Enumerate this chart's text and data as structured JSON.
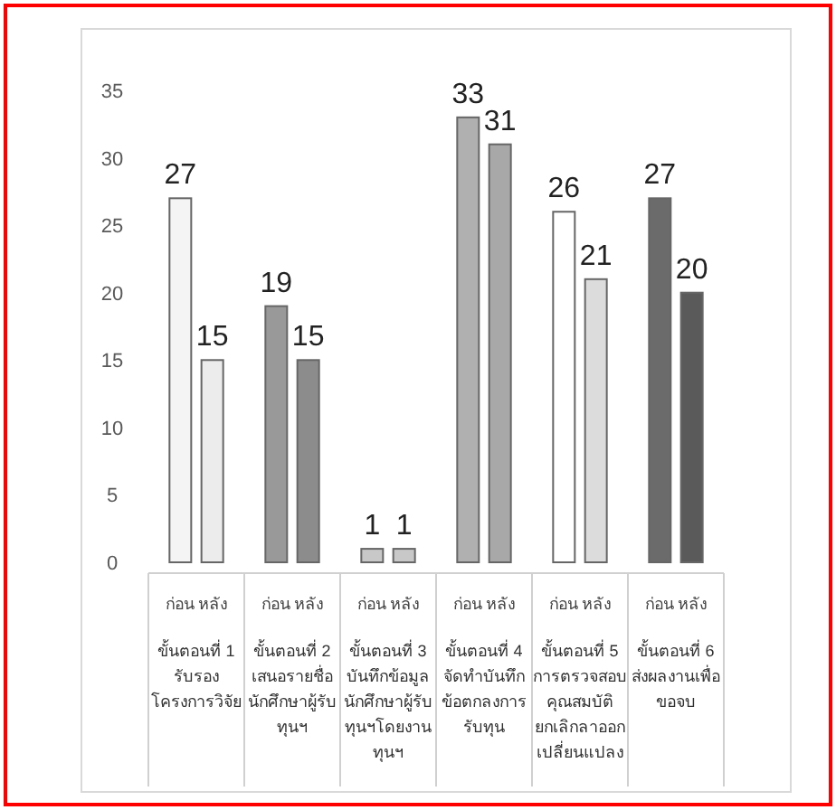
{
  "chart_data": {
    "type": "bar",
    "categories": [
      "ขั้นตอนที่ 1\nรับรอง\nโครงการวิจัย",
      "ขั้นตอนที่ 2\nเสนอรายชื่อ\nนักศึกษาผู้รับ\nทุนฯ",
      "ขั้นตอนที่ 3\nบันทึกข้อมูล\nนักศึกษาผู้รับ\nทุนฯโดยงาน\nทุนฯ",
      "ขั้นตอนที่ 4\nจัดทำบันทึก\nข้อตกลงการ\nรับทุน",
      "ขั้นตอนที่ 5\nการตรวจสอบ\nคุณสมบัติ\nยกเลิกลาออก\nเปลี่ยนแปลง",
      "ขั้นตอนที่ 6\nส่งผลงานเพื่อ\nขอจบ"
    ],
    "series": [
      {
        "name": "ก่อน",
        "colors": [
          "#f4f4f4",
          "#999999",
          "#c8c8c8",
          "#b0b0b0",
          "#ffffff",
          "#6b6b6b"
        ],
        "values": [
          27,
          19,
          1,
          33,
          26,
          27
        ]
      },
      {
        "name": "หลัง",
        "colors": [
          "#ececec",
          "#8c8c8c",
          "#c8c8c8",
          "#a8a8a8",
          "#dcdcdc",
          "#5a5a5a"
        ],
        "values": [
          15,
          15,
          1,
          31,
          21,
          20
        ]
      }
    ],
    "ylim": [
      0,
      35
    ],
    "yticks": [
      0,
      5,
      10,
      15,
      20,
      25,
      30,
      35
    ],
    "data_labels": true
  }
}
